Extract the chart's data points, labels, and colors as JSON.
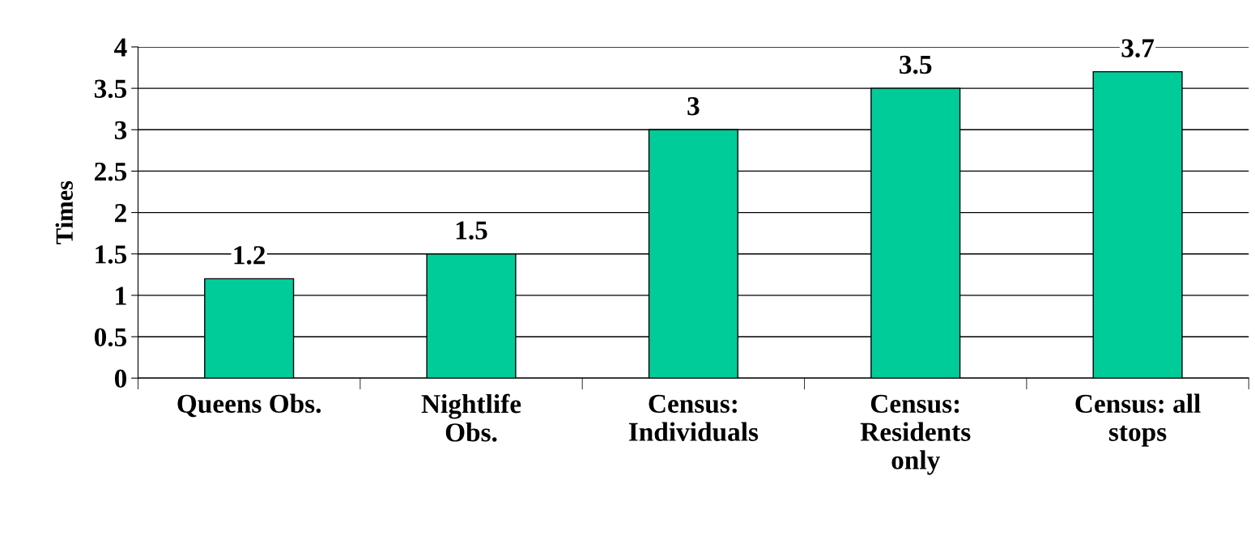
{
  "chart_data": {
    "type": "bar",
    "ylabel": "Times",
    "categories": [
      "Queens Obs.",
      "Nightlife\nObs.",
      "Census:\nIndividuals",
      "Census:\nResidents\nonly",
      "Census: all\nstops"
    ],
    "values": [
      1.2,
      1.5,
      3,
      3.5,
      3.7
    ],
    "color": "#00cc99",
    "ylim": [
      0,
      4
    ],
    "yticks": [
      0,
      0.5,
      1,
      1.5,
      2,
      2.5,
      3,
      3.5,
      4
    ],
    "grid": "y",
    "data_labels": true,
    "legend": false
  }
}
